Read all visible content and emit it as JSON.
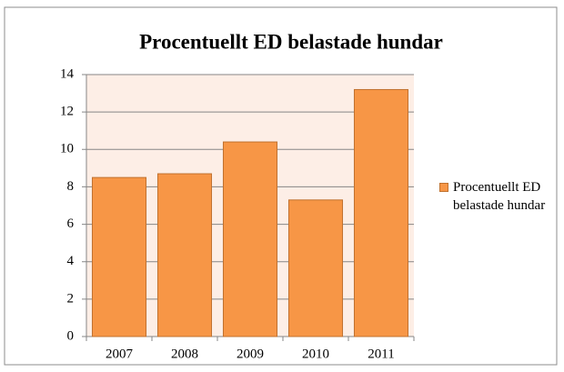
{
  "chart_data": {
    "type": "bar",
    "title": "Procentuellt ED belastade hundar",
    "categories": [
      "2007",
      "2008",
      "2009",
      "2010",
      "2011"
    ],
    "series": [
      {
        "name": "Procentuellt ED belastade hundar",
        "color": "#f79646",
        "values": [
          8.5,
          8.7,
          10.4,
          7.3,
          13.2
        ]
      }
    ],
    "ylim": [
      0,
      14
    ],
    "yticks": [
      0,
      2,
      4,
      6,
      8,
      10,
      12,
      14
    ],
    "grid": true,
    "legend": "right"
  }
}
